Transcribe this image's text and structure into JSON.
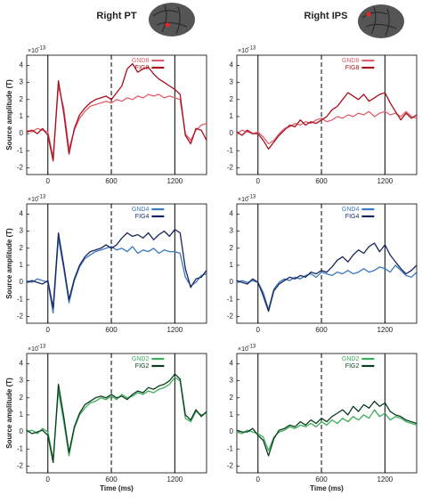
{
  "column_titles": [
    "Right PT",
    "Right IPS"
  ],
  "chart_data": [
    {
      "type": "line",
      "y_scale_base": "×10",
      "y_scale_exponent": "−13",
      "ylabel": "Source amplitude (T)",
      "x": [
        -200,
        -150,
        -100,
        -50,
        0,
        50,
        100,
        150,
        200,
        250,
        300,
        350,
        400,
        450,
        500,
        550,
        600,
        650,
        700,
        750,
        800,
        850,
        900,
        950,
        1000,
        1050,
        1100,
        1150,
        1200,
        1250,
        1300,
        1350,
        1400,
        1450,
        1500
      ],
      "series": [
        {
          "name": "GND8",
          "color": "#e0606e",
          "values": [
            0.2,
            0.1,
            0.3,
            0.2,
            0.1,
            -1.4,
            2.8,
            1.5,
            -0.9,
            0.2,
            0.9,
            1.3,
            1.6,
            1.7,
            1.8,
            1.9,
            1.8,
            2.0,
            1.9,
            2.1,
            2.0,
            2.2,
            2.1,
            2.3,
            2.2,
            2.3,
            2.1,
            2.2,
            2.1,
            2.0,
            0.0,
            -0.4,
            0.2,
            0.5,
            0.6
          ]
        },
        {
          "name": "FIG8",
          "color": "#a8101e",
          "values": [
            0.1,
            0.2,
            0.0,
            0.3,
            -0.1,
            -1.6,
            3.1,
            1.2,
            -1.2,
            0.3,
            1.1,
            1.5,
            1.8,
            2.0,
            2.1,
            2.2,
            2.0,
            2.4,
            2.8,
            3.8,
            4.1,
            3.6,
            3.8,
            3.9,
            3.5,
            3.2,
            3.0,
            2.8,
            2.6,
            2.3,
            -0.1,
            -0.6,
            0.3,
            0.2,
            -0.4
          ]
        }
      ],
      "xlim": [
        -200,
        1500
      ],
      "xticks": [
        0,
        600,
        1200
      ],
      "ylim": [
        -2.4,
        4.6
      ],
      "yticks": [
        -2,
        -1,
        0,
        1,
        2,
        3,
        4
      ],
      "vlines": [
        {
          "value": 0,
          "dashed": false
        },
        {
          "value": 600,
          "dashed": true
        },
        {
          "value": 1200,
          "dashed": false
        }
      ],
      "legend": "upper right"
    },
    {
      "type": "line",
      "y_scale_base": "×10",
      "y_scale_exponent": "−13",
      "x": [
        -200,
        -150,
        -100,
        -50,
        0,
        50,
        100,
        150,
        200,
        250,
        300,
        350,
        400,
        450,
        500,
        550,
        600,
        650,
        700,
        750,
        800,
        850,
        900,
        950,
        1000,
        1050,
        1100,
        1150,
        1200,
        1250,
        1300,
        1350,
        1400,
        1450,
        1500
      ],
      "series": [
        {
          "name": "GND8",
          "color": "#e0606e",
          "values": [
            0.0,
            0.2,
            0.1,
            0.0,
            0.1,
            -0.2,
            -0.6,
            -0.4,
            0.0,
            0.3,
            0.4,
            0.6,
            0.5,
            0.7,
            0.6,
            0.8,
            0.9,
            0.7,
            0.8,
            1.0,
            0.9,
            1.1,
            1.0,
            1.2,
            1.1,
            1.3,
            1.0,
            1.2,
            1.3,
            1.1,
            1.2,
            1.0,
            1.3,
            1.0,
            0.9
          ]
        },
        {
          "name": "FIG8",
          "color": "#a8101e",
          "values": [
            0.1,
            -0.1,
            0.2,
            0.0,
            0.0,
            -0.4,
            -0.9,
            -0.5,
            -0.1,
            0.2,
            0.5,
            0.4,
            0.8,
            0.5,
            0.7,
            0.6,
            0.8,
            1.0,
            1.4,
            1.6,
            2.0,
            2.4,
            2.2,
            2.0,
            2.3,
            1.9,
            2.1,
            2.3,
            2.4,
            1.8,
            1.3,
            0.8,
            1.2,
            0.9,
            1.1
          ]
        }
      ],
      "xlim": [
        -200,
        1500
      ],
      "xticks": [
        0,
        600,
        1200
      ],
      "ylim": [
        -2.4,
        4.6
      ],
      "yticks": [
        -2,
        -1,
        0,
        1,
        2,
        3,
        4
      ],
      "vlines": [
        {
          "value": 0,
          "dashed": false
        },
        {
          "value": 600,
          "dashed": true
        },
        {
          "value": 1200,
          "dashed": false
        }
      ],
      "legend": "upper right"
    },
    {
      "type": "line",
      "y_scale_base": "×10",
      "y_scale_exponent": "−13",
      "ylabel": "Source amplitude (T)",
      "x": [
        -200,
        -150,
        -100,
        -50,
        0,
        50,
        100,
        150,
        200,
        250,
        300,
        350,
        400,
        450,
        500,
        550,
        600,
        650,
        700,
        750,
        800,
        850,
        900,
        950,
        1000,
        1050,
        1100,
        1150,
        1200,
        1250,
        1300,
        1350,
        1400,
        1450,
        1500
      ],
      "series": [
        {
          "name": "GND4",
          "color": "#3a78c0",
          "values": [
            0.1,
            0.0,
            0.2,
            0.1,
            0.0,
            -1.8,
            2.6,
            0.8,
            -1.2,
            0.1,
            0.9,
            1.4,
            1.6,
            1.8,
            1.9,
            2.0,
            2.1,
            1.9,
            2.0,
            1.8,
            2.1,
            1.7,
            1.9,
            1.8,
            2.0,
            1.7,
            1.9,
            1.8,
            1.8,
            1.7,
            0.3,
            -0.2,
            0.0,
            0.4,
            0.5
          ]
        },
        {
          "name": "FIG4",
          "color": "#18265e",
          "values": [
            0.0,
            0.1,
            0.0,
            -0.1,
            0.1,
            -1.5,
            2.9,
            1.0,
            -1.0,
            0.2,
            1.0,
            1.5,
            1.8,
            1.9,
            2.0,
            2.2,
            2.0,
            2.2,
            2.6,
            2.9,
            2.7,
            2.8,
            2.6,
            2.9,
            2.5,
            2.8,
            3.0,
            2.7,
            3.1,
            2.9,
            0.8,
            -0.3,
            0.2,
            0.3,
            0.7
          ]
        }
      ],
      "xlim": [
        -200,
        1500
      ],
      "xticks": [
        0,
        600,
        1200
      ],
      "ylim": [
        -2.4,
        4.6
      ],
      "yticks": [
        -2,
        -1,
        0,
        1,
        2,
        3,
        4
      ],
      "vlines": [
        {
          "value": 0,
          "dashed": false
        },
        {
          "value": 600,
          "dashed": true
        },
        {
          "value": 1200,
          "dashed": false
        }
      ],
      "legend": "upper right"
    },
    {
      "type": "line",
      "y_scale_base": "×10",
      "y_scale_exponent": "−13",
      "x": [
        -200,
        -150,
        -100,
        -50,
        0,
        50,
        100,
        150,
        200,
        250,
        300,
        350,
        400,
        450,
        500,
        550,
        600,
        650,
        700,
        750,
        800,
        850,
        900,
        950,
        1000,
        1050,
        1100,
        1150,
        1200,
        1250,
        1300,
        1350,
        1400,
        1450,
        1500
      ],
      "series": [
        {
          "name": "GND4",
          "color": "#3a78c0",
          "values": [
            0.0,
            0.1,
            0.0,
            0.1,
            0.0,
            -0.6,
            -1.6,
            -0.4,
            0.0,
            0.2,
            0.1,
            0.3,
            0.2,
            0.4,
            0.5,
            0.3,
            0.6,
            0.5,
            0.4,
            0.6,
            0.5,
            0.7,
            0.5,
            0.6,
            0.8,
            0.6,
            0.7,
            0.9,
            0.8,
            0.6,
            1.0,
            0.7,
            0.4,
            0.3,
            0.6
          ]
        },
        {
          "name": "FIG4",
          "color": "#18265e",
          "values": [
            0.1,
            0.0,
            -0.1,
            0.2,
            0.0,
            -0.8,
            -1.7,
            -0.5,
            -0.1,
            0.1,
            0.3,
            0.2,
            0.4,
            0.3,
            0.6,
            0.5,
            0.7,
            0.6,
            0.9,
            1.3,
            1.5,
            1.2,
            1.6,
            1.9,
            1.7,
            2.1,
            2.3,
            1.8,
            2.2,
            1.6,
            1.2,
            0.8,
            0.5,
            0.7,
            1.0
          ]
        }
      ],
      "xlim": [
        -200,
        1500
      ],
      "xticks": [
        0,
        600,
        1200
      ],
      "ylim": [
        -2.4,
        4.6
      ],
      "yticks": [
        -2,
        -1,
        0,
        1,
        2,
        3,
        4
      ],
      "vlines": [
        {
          "value": 0,
          "dashed": false
        },
        {
          "value": 600,
          "dashed": true
        },
        {
          "value": 1200,
          "dashed": false
        }
      ],
      "legend": "upper right"
    },
    {
      "type": "line",
      "y_scale_base": "×10",
      "y_scale_exponent": "−13",
      "ylabel": "Source amplitude (T)",
      "xlabel": "Time (ms)",
      "x": [
        -200,
        -150,
        -100,
        -50,
        0,
        50,
        100,
        150,
        200,
        250,
        300,
        350,
        400,
        450,
        500,
        550,
        600,
        650,
        700,
        750,
        800,
        850,
        900,
        950,
        1000,
        1050,
        1100,
        1150,
        1200,
        1250,
        1300,
        1350,
        1400,
        1450,
        1500
      ],
      "series": [
        {
          "name": "GND2",
          "color": "#3cae5c",
          "values": [
            0.0,
            0.1,
            -0.1,
            0.2,
            0.0,
            -1.6,
            2.4,
            0.6,
            -1.4,
            0.2,
            1.0,
            1.4,
            1.7,
            1.8,
            2.0,
            1.9,
            2.1,
            1.9,
            2.2,
            2.0,
            2.1,
            2.3,
            2.2,
            2.4,
            2.3,
            2.5,
            2.6,
            2.8,
            3.2,
            3.0,
            0.8,
            0.6,
            1.2,
            1.0,
            1.1
          ]
        },
        {
          "name": "FIG2",
          "color": "#0a3e1e",
          "values": [
            0.1,
            -0.1,
            0.0,
            0.1,
            -0.2,
            -1.8,
            2.8,
            0.9,
            -1.2,
            0.3,
            1.1,
            1.6,
            1.8,
            2.0,
            2.1,
            2.0,
            2.2,
            2.0,
            2.1,
            1.9,
            2.2,
            2.4,
            2.3,
            2.6,
            2.5,
            2.7,
            2.8,
            3.0,
            3.4,
            3.1,
            1.0,
            0.7,
            1.3,
            0.9,
            1.2
          ]
        }
      ],
      "xlim": [
        -200,
        1500
      ],
      "xticks": [
        0,
        600,
        1200
      ],
      "ylim": [
        -2.4,
        4.6
      ],
      "yticks": [
        -2,
        -1,
        0,
        1,
        2,
        3,
        4
      ],
      "vlines": [
        {
          "value": 0,
          "dashed": false
        },
        {
          "value": 600,
          "dashed": true
        },
        {
          "value": 1200,
          "dashed": false
        }
      ],
      "legend": "upper right"
    },
    {
      "type": "line",
      "y_scale_base": "×10",
      "y_scale_exponent": "−13",
      "xlabel": "Time (ms)",
      "x": [
        -200,
        -150,
        -100,
        -50,
        0,
        50,
        100,
        150,
        200,
        250,
        300,
        350,
        400,
        450,
        500,
        550,
        600,
        650,
        700,
        750,
        800,
        850,
        900,
        950,
        1000,
        1050,
        1100,
        1150,
        1200,
        1250,
        1300,
        1350,
        1400,
        1450,
        1500
      ],
      "series": [
        {
          "name": "GND2",
          "color": "#3cae5c",
          "values": [
            0.0,
            -0.1,
            0.1,
            0.0,
            -0.1,
            -0.3,
            -1.1,
            -0.3,
            0.0,
            0.1,
            0.3,
            0.2,
            0.4,
            0.3,
            0.5,
            0.3,
            0.6,
            0.4,
            0.7,
            0.5,
            0.8,
            0.6,
            0.9,
            0.7,
            1.0,
            0.8,
            1.3,
            0.9,
            1.1,
            0.7,
            0.9,
            0.8,
            0.6,
            0.5,
            0.4
          ]
        },
        {
          "name": "FIG2",
          "color": "#0a3e1e",
          "values": [
            0.1,
            0.0,
            0.0,
            0.2,
            -0.2,
            -0.5,
            -1.4,
            -0.4,
            0.1,
            0.2,
            0.4,
            0.3,
            0.6,
            0.4,
            0.7,
            0.5,
            0.8,
            0.6,
            0.9,
            1.1,
            1.3,
            1.0,
            1.5,
            1.2,
            1.6,
            1.4,
            1.8,
            1.5,
            1.7,
            1.2,
            1.0,
            0.9,
            0.7,
            0.6,
            0.5
          ]
        }
      ],
      "xlim": [
        -200,
        1500
      ],
      "xticks": [
        0,
        600,
        1200
      ],
      "ylim": [
        -2.4,
        4.6
      ],
      "yticks": [
        -2,
        -1,
        0,
        1,
        2,
        3,
        4
      ],
      "vlines": [
        {
          "value": 0,
          "dashed": false
        },
        {
          "value": 600,
          "dashed": true
        },
        {
          "value": 1200,
          "dashed": false
        }
      ],
      "legend": "upper right"
    }
  ]
}
